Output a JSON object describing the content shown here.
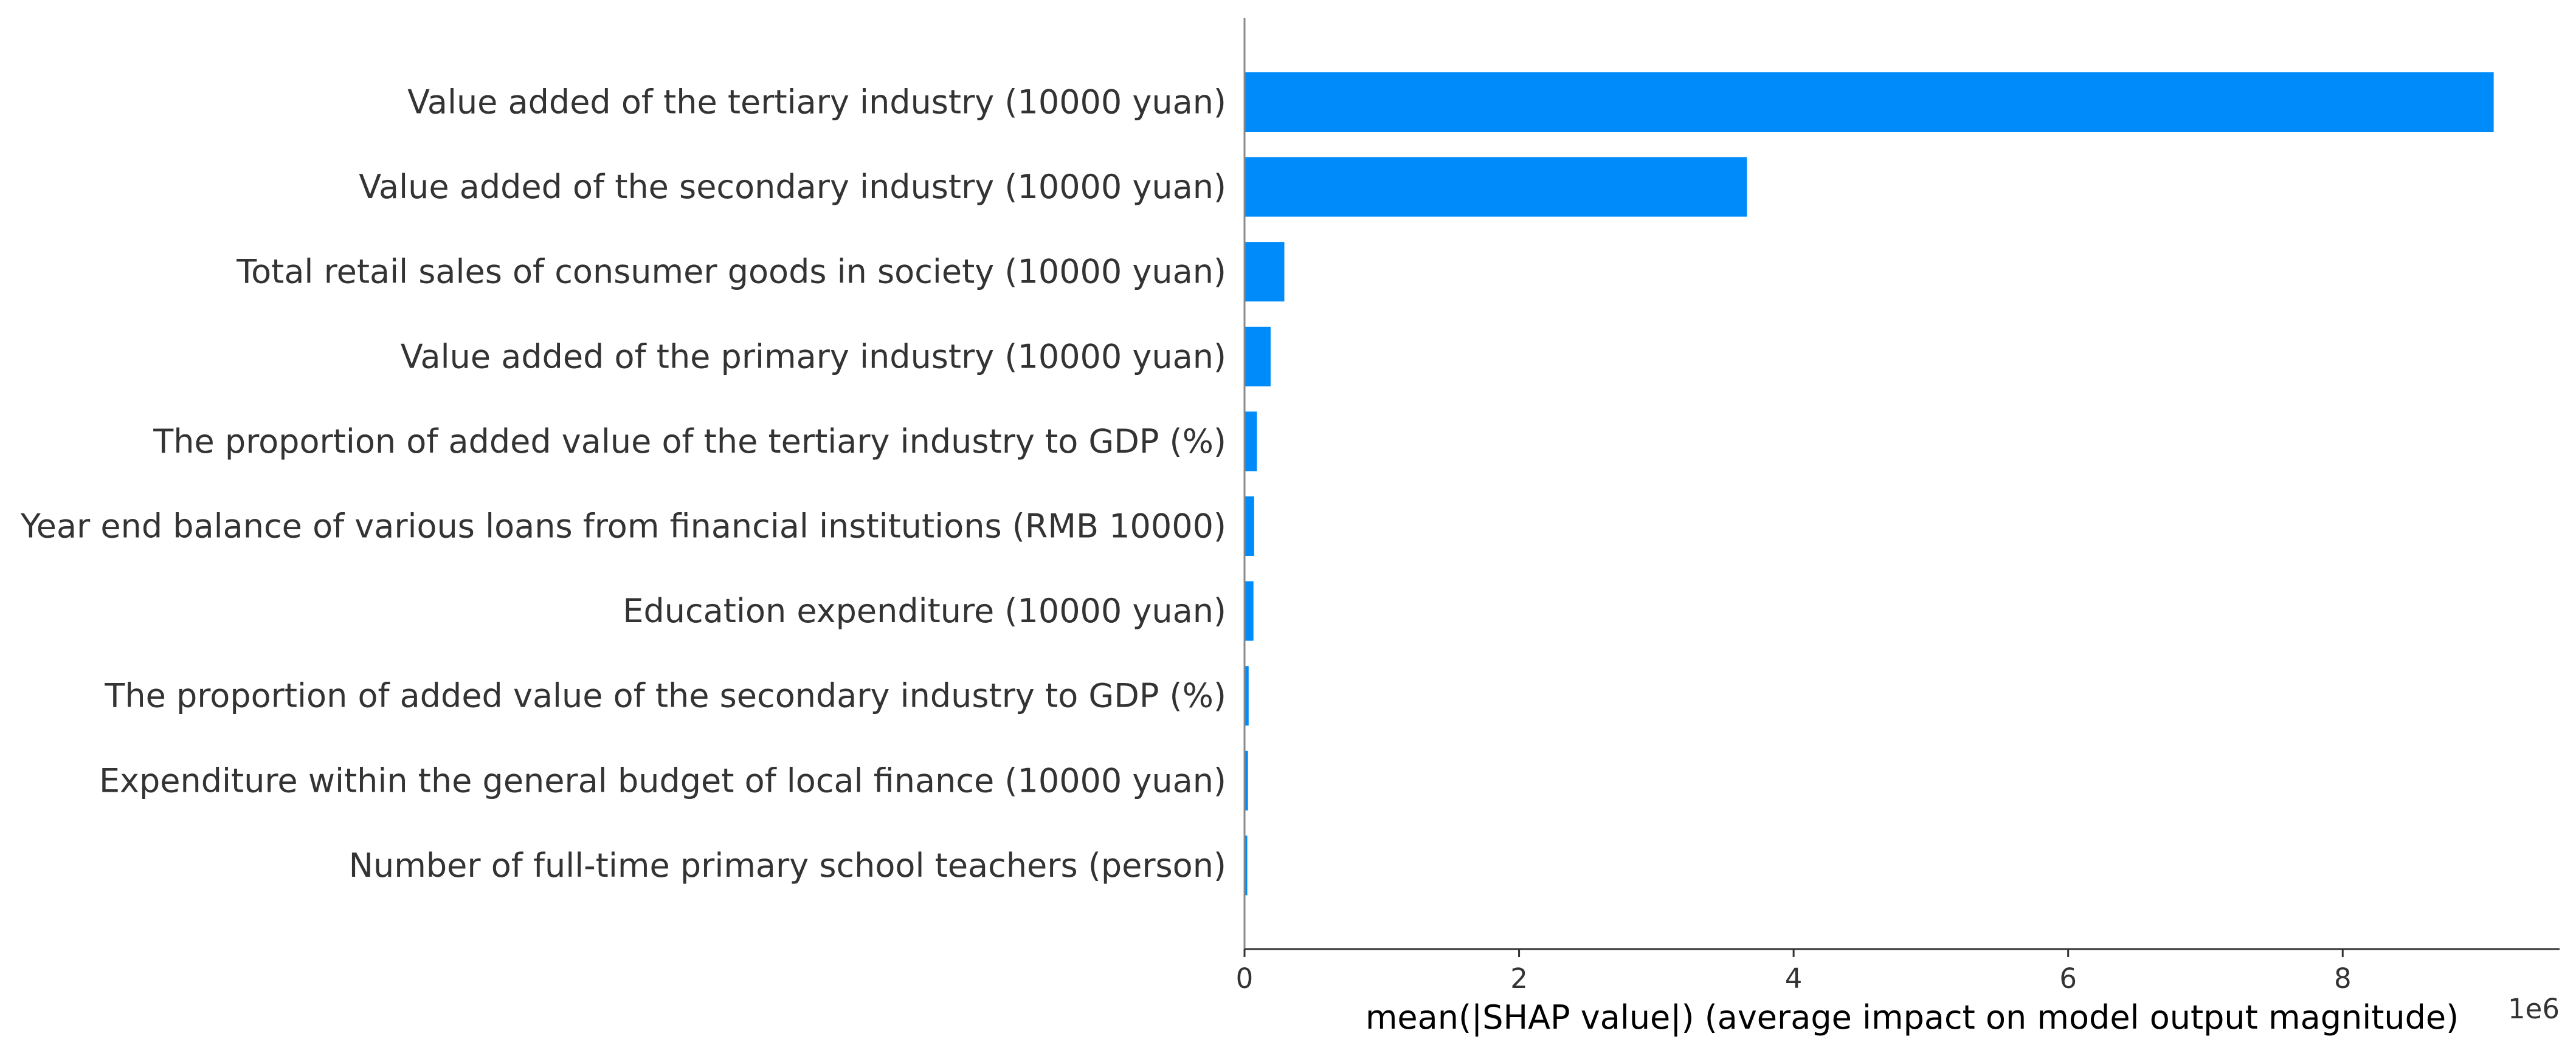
{
  "chart_data": {
    "type": "bar",
    "orientation": "horizontal",
    "categories": [
      "Value added of the tertiary industry (10000 yuan)",
      "Value added of the secondary industry (10000 yuan)",
      "Total retail sales of consumer goods in society (10000 yuan)",
      "Value added of the primary industry (10000 yuan)",
      "The proportion of added value of the tertiary industry to GDP (%)",
      "Year end balance of various loans from financial institutions (RMB 10000)",
      "Education expenditure (10000 yuan)",
      "The proportion of added value of the secondary industry to GDP (%)",
      "Expenditure within the general budget of local finance (10000 yuan)",
      "Number of full-time primary school teachers (person)"
    ],
    "values": [
      9100000,
      3660000,
      290000,
      190000,
      90000,
      70000,
      65000,
      30000,
      25000,
      20000
    ],
    "title": "",
    "xlabel": "mean(|SHAP value|) (average impact on model output magnitude)",
    "ylabel": "",
    "xlim": [
      0,
      9580000
    ],
    "xticks": [
      0,
      2000000,
      4000000,
      6000000,
      8000000
    ],
    "xtick_labels": [
      "0",
      "2",
      "4",
      "6",
      "8"
    ],
    "offset_label": "1e6",
    "bar_color": "#008bfb",
    "text_color": "#333333",
    "axis_color": "#333333",
    "grid": false,
    "legend": "none"
  }
}
